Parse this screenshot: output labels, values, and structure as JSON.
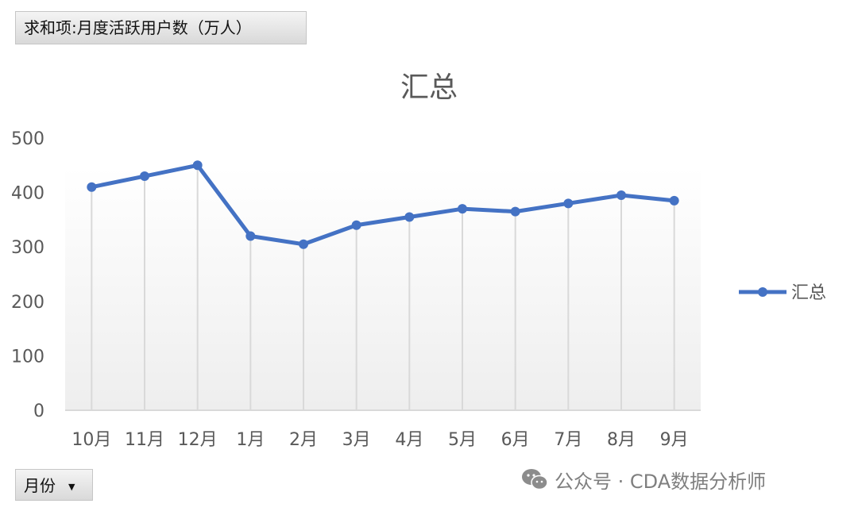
{
  "pivot": {
    "value_field": "求和项:月度活跃用户数（万人）",
    "axis_field": "月份",
    "dropdown_glyph": "▼"
  },
  "watermark": {
    "text": "公众号 · CDA数据分析师",
    "icon": "wechat-icon"
  },
  "colors": {
    "series": "#4472c4",
    "gridline": "#d9d9d9",
    "text": "#595959",
    "title": "#595959"
  },
  "chart_data": {
    "type": "line",
    "title": "汇总",
    "xlabel": "",
    "ylabel": "",
    "categories": [
      "10月",
      "11月",
      "12月",
      "1月",
      "2月",
      "3月",
      "4月",
      "5月",
      "6月",
      "7月",
      "8月",
      "9月"
    ],
    "series": [
      {
        "name": "汇总",
        "values": [
          410,
          430,
          450,
          320,
          305,
          340,
          355,
          370,
          365,
          380,
          395,
          385
        ]
      }
    ],
    "ylim": [
      0,
      500
    ],
    "yticks": [
      "0",
      "100",
      "200",
      "300",
      "400",
      "500"
    ],
    "grid": "vertical",
    "legend": "right",
    "markers": true
  }
}
